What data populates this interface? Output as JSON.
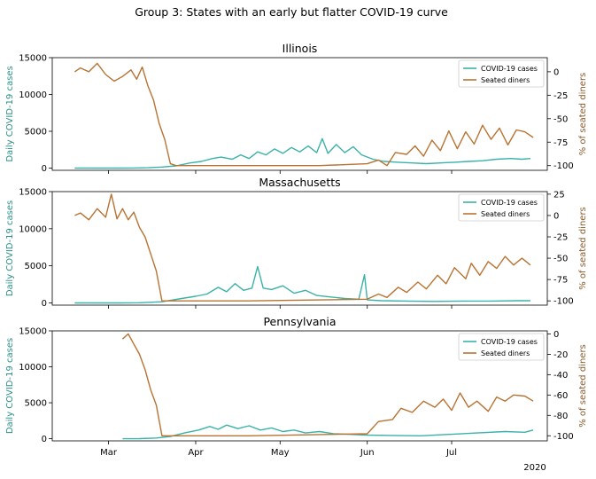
{
  "figure_title": "Group 3: States with an early but flatter COVID-19 curve",
  "year_label": "2020",
  "colors": {
    "cases": "#3bb2a8",
    "diners": "#b87333",
    "cases_axis": "#2a8f86",
    "diners_axis": "#8a5a2b"
  },
  "legend": {
    "cases": "COVID-19 cases",
    "diners": "Seated diners"
  },
  "x_ticks": [
    {
      "label": "Mar",
      "date": "2020-03-01"
    },
    {
      "label": "Apr",
      "date": "2020-04-01"
    },
    {
      "label": "May",
      "date": "2020-05-01"
    },
    {
      "label": "Jun",
      "date": "2020-06-01"
    },
    {
      "label": "Jul",
      "date": "2020-07-01"
    }
  ],
  "chart_data": [
    {
      "type": "line",
      "title": "Illinois",
      "ylabel_left": "Daily COVID-19 cases",
      "ylabel_right": "% of seated diners",
      "xlim": [
        "2020-02-10",
        "2020-08-04"
      ],
      "ylim_left": [
        -300,
        15000
      ],
      "ylim_right": [
        -105,
        15
      ],
      "yticks_left": [
        0,
        5000,
        10000,
        15000
      ],
      "yticks_right": [
        -100,
        -75,
        -50,
        -25,
        0
      ],
      "legend_position": "upper right",
      "series": [
        {
          "name": "COVID-19 cases",
          "axis": "left",
          "points": [
            [
              "2020-02-18",
              0
            ],
            [
              "2020-03-05",
              0
            ],
            [
              "2020-03-10",
              10
            ],
            [
              "2020-03-15",
              50
            ],
            [
              "2020-03-20",
              150
            ],
            [
              "2020-03-25",
              300
            ],
            [
              "2020-03-30",
              700
            ],
            [
              "2020-04-03",
              900
            ],
            [
              "2020-04-07",
              1300
            ],
            [
              "2020-04-10",
              1500
            ],
            [
              "2020-04-14",
              1200
            ],
            [
              "2020-04-17",
              1800
            ],
            [
              "2020-04-20",
              1300
            ],
            [
              "2020-04-23",
              2200
            ],
            [
              "2020-04-26",
              1800
            ],
            [
              "2020-04-29",
              2600
            ],
            [
              "2020-05-02",
              2000
            ],
            [
              "2020-05-05",
              2800
            ],
            [
              "2020-05-08",
              2200
            ],
            [
              "2020-05-11",
              3000
            ],
            [
              "2020-05-14",
              2100
            ],
            [
              "2020-05-16",
              4000
            ],
            [
              "2020-05-18",
              2000
            ],
            [
              "2020-05-21",
              3200
            ],
            [
              "2020-05-24",
              2100
            ],
            [
              "2020-05-27",
              2900
            ],
            [
              "2020-05-30",
              1800
            ],
            [
              "2020-06-03",
              1200
            ],
            [
              "2020-06-07",
              900
            ],
            [
              "2020-06-12",
              800
            ],
            [
              "2020-06-17",
              700
            ],
            [
              "2020-06-22",
              600
            ],
            [
              "2020-06-27",
              700
            ],
            [
              "2020-07-02",
              800
            ],
            [
              "2020-07-07",
              900
            ],
            [
              "2020-07-12",
              1000
            ],
            [
              "2020-07-17",
              1200
            ],
            [
              "2020-07-22",
              1300
            ],
            [
              "2020-07-26",
              1200
            ],
            [
              "2020-07-29",
              1300
            ]
          ]
        },
        {
          "name": "Seated diners",
          "axis": "right",
          "points": [
            [
              "2020-02-18",
              0
            ],
            [
              "2020-02-20",
              4
            ],
            [
              "2020-02-23",
              0
            ],
            [
              "2020-02-26",
              9
            ],
            [
              "2020-02-29",
              -3
            ],
            [
              "2020-03-03",
              -10
            ],
            [
              "2020-03-06",
              -5
            ],
            [
              "2020-03-09",
              2
            ],
            [
              "2020-03-11",
              -8
            ],
            [
              "2020-03-13",
              5
            ],
            [
              "2020-03-15",
              -15
            ],
            [
              "2020-03-17",
              -30
            ],
            [
              "2020-03-19",
              -55
            ],
            [
              "2020-03-21",
              -72
            ],
            [
              "2020-03-23",
              -98
            ],
            [
              "2020-03-25",
              -100
            ],
            [
              "2020-04-15",
              -100
            ],
            [
              "2020-05-15",
              -100
            ],
            [
              "2020-06-01",
              -98
            ],
            [
              "2020-06-05",
              -94
            ],
            [
              "2020-06-08",
              -100
            ],
            [
              "2020-06-11",
              -86
            ],
            [
              "2020-06-15",
              -88
            ],
            [
              "2020-06-18",
              -79
            ],
            [
              "2020-06-21",
              -90
            ],
            [
              "2020-06-24",
              -73
            ],
            [
              "2020-06-27",
              -84
            ],
            [
              "2020-06-30",
              -63
            ],
            [
              "2020-07-03",
              -82
            ],
            [
              "2020-07-06",
              -64
            ],
            [
              "2020-07-09",
              -77
            ],
            [
              "2020-07-12",
              -57
            ],
            [
              "2020-07-15",
              -72
            ],
            [
              "2020-07-18",
              -60
            ],
            [
              "2020-07-21",
              -78
            ],
            [
              "2020-07-24",
              -62
            ],
            [
              "2020-07-27",
              -64
            ],
            [
              "2020-07-30",
              -70
            ]
          ]
        }
      ]
    },
    {
      "type": "line",
      "title": "Massachusetts",
      "ylabel_left": "Daily COVID-19 cases",
      "ylabel_right": "% of seated diners",
      "xlim": [
        "2020-02-10",
        "2020-08-04"
      ],
      "ylim_left": [
        -300,
        15000
      ],
      "ylim_right": [
        -105,
        28
      ],
      "yticks_left": [
        0,
        5000,
        10000,
        15000
      ],
      "yticks_right": [
        -100,
        -75,
        -50,
        -25,
        0,
        25
      ],
      "legend_position": "upper right",
      "series": [
        {
          "name": "COVID-19 cases",
          "axis": "left",
          "points": [
            [
              "2020-02-18",
              0
            ],
            [
              "2020-03-05",
              0
            ],
            [
              "2020-03-12",
              20
            ],
            [
              "2020-03-20",
              150
            ],
            [
              "2020-03-27",
              600
            ],
            [
              "2020-04-01",
              900
            ],
            [
              "2020-04-05",
              1200
            ],
            [
              "2020-04-09",
              2100
            ],
            [
              "2020-04-12",
              1500
            ],
            [
              "2020-04-15",
              2600
            ],
            [
              "2020-04-18",
              1700
            ],
            [
              "2020-04-21",
              2000
            ],
            [
              "2020-04-23",
              4900
            ],
            [
              "2020-04-25",
              2000
            ],
            [
              "2020-04-28",
              1800
            ],
            [
              "2020-05-02",
              2300
            ],
            [
              "2020-05-06",
              1300
            ],
            [
              "2020-05-10",
              1700
            ],
            [
              "2020-05-14",
              1000
            ],
            [
              "2020-05-19",
              800
            ],
            [
              "2020-05-24",
              600
            ],
            [
              "2020-05-29",
              500
            ],
            [
              "2020-05-31",
              3800
            ],
            [
              "2020-06-01",
              400
            ],
            [
              "2020-06-06",
              300
            ],
            [
              "2020-06-15",
              250
            ],
            [
              "2020-06-25",
              200
            ],
            [
              "2020-07-05",
              250
            ],
            [
              "2020-07-15",
              250
            ],
            [
              "2020-07-25",
              300
            ],
            [
              "2020-07-29",
              300
            ]
          ]
        },
        {
          "name": "Seated diners",
          "axis": "right",
          "points": [
            [
              "2020-02-18",
              0
            ],
            [
              "2020-02-20",
              3
            ],
            [
              "2020-02-23",
              -5
            ],
            [
              "2020-02-26",
              8
            ],
            [
              "2020-02-29",
              -2
            ],
            [
              "2020-03-02",
              25
            ],
            [
              "2020-03-04",
              -4
            ],
            [
              "2020-03-06",
              8
            ],
            [
              "2020-03-08",
              -5
            ],
            [
              "2020-03-10",
              4
            ],
            [
              "2020-03-12",
              -14
            ],
            [
              "2020-03-14",
              -25
            ],
            [
              "2020-03-16",
              -45
            ],
            [
              "2020-03-18",
              -65
            ],
            [
              "2020-03-20",
              -100
            ],
            [
              "2020-04-20",
              -100
            ],
            [
              "2020-06-01",
              -98
            ],
            [
              "2020-06-05",
              -92
            ],
            [
              "2020-06-08",
              -96
            ],
            [
              "2020-06-12",
              -84
            ],
            [
              "2020-06-15",
              -90
            ],
            [
              "2020-06-19",
              -78
            ],
            [
              "2020-06-22",
              -86
            ],
            [
              "2020-06-26",
              -70
            ],
            [
              "2020-06-29",
              -80
            ],
            [
              "2020-07-02",
              -61
            ],
            [
              "2020-07-06",
              -74
            ],
            [
              "2020-07-08",
              -56
            ],
            [
              "2020-07-11",
              -70
            ],
            [
              "2020-07-14",
              -54
            ],
            [
              "2020-07-17",
              -62
            ],
            [
              "2020-07-20",
              -48
            ],
            [
              "2020-07-23",
              -58
            ],
            [
              "2020-07-26",
              -50
            ],
            [
              "2020-07-29",
              -58
            ]
          ]
        }
      ]
    },
    {
      "type": "line",
      "title": "Pennsylvania",
      "ylabel_left": "Daily COVID-19 cases",
      "ylabel_right": "% of seated diners",
      "xlim": [
        "2020-02-10",
        "2020-08-04"
      ],
      "ylim_left": [
        -300,
        15000
      ],
      "ylim_right": [
        -105,
        3
      ],
      "yticks_left": [
        0,
        5000,
        10000,
        15000
      ],
      "yticks_right": [
        -100,
        -80,
        -60,
        -40,
        -20,
        0
      ],
      "legend_position": "upper right",
      "series": [
        {
          "name": "COVID-19 cases",
          "axis": "left",
          "points": [
            [
              "2020-03-06",
              0
            ],
            [
              "2020-03-12",
              10
            ],
            [
              "2020-03-18",
              100
            ],
            [
              "2020-03-23",
              300
            ],
            [
              "2020-03-28",
              800
            ],
            [
              "2020-04-02",
              1200
            ],
            [
              "2020-04-06",
              1700
            ],
            [
              "2020-04-09",
              1300
            ],
            [
              "2020-04-12",
              1900
            ],
            [
              "2020-04-16",
              1400
            ],
            [
              "2020-04-20",
              1800
            ],
            [
              "2020-04-24",
              1200
            ],
            [
              "2020-04-28",
              1500
            ],
            [
              "2020-05-02",
              1000
            ],
            [
              "2020-05-06",
              1200
            ],
            [
              "2020-05-10",
              800
            ],
            [
              "2020-05-15",
              1000
            ],
            [
              "2020-05-20",
              700
            ],
            [
              "2020-05-26",
              600
            ],
            [
              "2020-06-01",
              500
            ],
            [
              "2020-06-10",
              450
            ],
            [
              "2020-06-20",
              400
            ],
            [
              "2020-06-30",
              600
            ],
            [
              "2020-07-10",
              800
            ],
            [
              "2020-07-20",
              1000
            ],
            [
              "2020-07-27",
              900
            ],
            [
              "2020-07-30",
              1200
            ]
          ]
        },
        {
          "name": "Seated diners",
          "axis": "right",
          "points": [
            [
              "2020-03-06",
              -5
            ],
            [
              "2020-03-08",
              0
            ],
            [
              "2020-03-10",
              -10
            ],
            [
              "2020-03-12",
              -20
            ],
            [
              "2020-03-14",
              -35
            ],
            [
              "2020-03-16",
              -55
            ],
            [
              "2020-03-18",
              -70
            ],
            [
              "2020-03-20",
              -100
            ],
            [
              "2020-04-20",
              -100
            ],
            [
              "2020-06-01",
              -98
            ],
            [
              "2020-06-05",
              -86
            ],
            [
              "2020-06-10",
              -84
            ],
            [
              "2020-06-13",
              -73
            ],
            [
              "2020-06-17",
              -77
            ],
            [
              "2020-06-21",
              -66
            ],
            [
              "2020-06-25",
              -72
            ],
            [
              "2020-06-28",
              -64
            ],
            [
              "2020-07-01",
              -75
            ],
            [
              "2020-07-04",
              -58
            ],
            [
              "2020-07-07",
              -72
            ],
            [
              "2020-07-10",
              -66
            ],
            [
              "2020-07-14",
              -76
            ],
            [
              "2020-07-17",
              -62
            ],
            [
              "2020-07-20",
              -66
            ],
            [
              "2020-07-23",
              -60
            ],
            [
              "2020-07-27",
              -61
            ],
            [
              "2020-07-30",
              -66
            ]
          ]
        }
      ]
    }
  ]
}
